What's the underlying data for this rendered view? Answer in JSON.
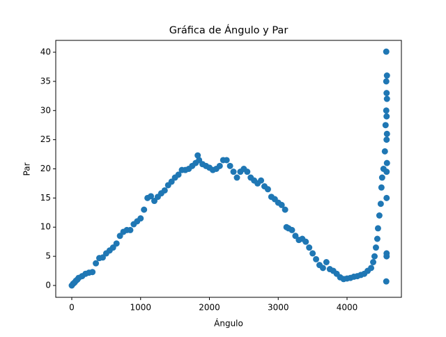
{
  "chart_data": {
    "type": "scatter",
    "title": "Gráfica de Ángulo y Par",
    "x_label": "Ángulo",
    "y_label": "Par",
    "color": "#1f77b4",
    "grid": false,
    "xlim": [
      -233,
      4790
    ],
    "ylim": [
      -2.03,
      42.03
    ],
    "xticks": [
      0,
      1000,
      2000,
      3000,
      4000
    ],
    "yticks": [
      0,
      5,
      10,
      15,
      20,
      25,
      30,
      35,
      40
    ],
    "x": [
      0,
      20,
      40,
      60,
      80,
      100,
      150,
      200,
      250,
      300,
      350,
      400,
      450,
      500,
      550,
      600,
      650,
      700,
      750,
      800,
      850,
      900,
      950,
      1000,
      1050,
      1100,
      1150,
      1200,
      1250,
      1300,
      1350,
      1400,
      1450,
      1500,
      1550,
      1600,
      1650,
      1700,
      1750,
      1800,
      1830,
      1850,
      1900,
      1950,
      2000,
      2050,
      2100,
      2150,
      2200,
      2250,
      2300,
      2350,
      2400,
      2450,
      2500,
      2550,
      2600,
      2650,
      2700,
      2750,
      2800,
      2850,
      2900,
      2950,
      3000,
      3050,
      3100,
      3120,
      3150,
      3200,
      3250,
      3300,
      3350,
      3400,
      3450,
      3500,
      3550,
      3600,
      3650,
      3700,
      3750,
      3800,
      3850,
      3900,
      3950,
      4000,
      4050,
      4100,
      4150,
      4200,
      4250,
      4300,
      4350,
      4380,
      4400,
      4420,
      4440,
      4450,
      4470,
      4490,
      4500,
      4510,
      4530,
      4550,
      4560,
      4570,
      4575,
      4580,
      4570,
      4580,
      4575,
      4580,
      4575,
      4575,
      4575,
      4575,
      4570,
      4570,
      4575,
      4580
    ],
    "values": [
      0,
      0.3,
      0.5,
      0.8,
      1.0,
      1.3,
      1.6,
      2.0,
      2.2,
      2.3,
      3.8,
      4.7,
      4.8,
      5.5,
      6.0,
      6.5,
      7.2,
      8.5,
      9.2,
      9.5,
      9.5,
      10.5,
      11.0,
      11.5,
      13.0,
      15.0,
      15.3,
      14.5,
      15.2,
      15.8,
      16.3,
      17.2,
      17.8,
      18.5,
      19.0,
      19.8,
      19.8,
      20.0,
      20.5,
      21.0,
      22.3,
      21.5,
      20.8,
      20.5,
      20.2,
      19.8,
      20.0,
      20.5,
      21.5,
      21.5,
      20.5,
      19.5,
      18.5,
      19.5,
      20.0,
      19.5,
      18.5,
      18.0,
      17.5,
      18.0,
      17.0,
      16.5,
      15.2,
      14.8,
      14.2,
      13.8,
      13.0,
      10.0,
      9.8,
      9.5,
      8.5,
      7.8,
      8.0,
      7.5,
      6.5,
      5.5,
      4.5,
      3.5,
      3.0,
      4.0,
      2.8,
      2.5,
      2.0,
      1.4,
      1.1,
      1.2,
      1.3,
      1.5,
      1.6,
      1.8,
      2.0,
      2.5,
      3.0,
      4.0,
      5.0,
      6.5,
      8.0,
      9.8,
      12.0,
      14.0,
      16.8,
      18.5,
      20.0,
      23.0,
      27.5,
      30.0,
      33.0,
      36.0,
      35.0,
      32.0,
      25.0,
      21.0,
      19.5,
      15.0,
      5.5,
      5.0,
      0.7,
      40.1,
      29.0,
      26.0
    ]
  }
}
